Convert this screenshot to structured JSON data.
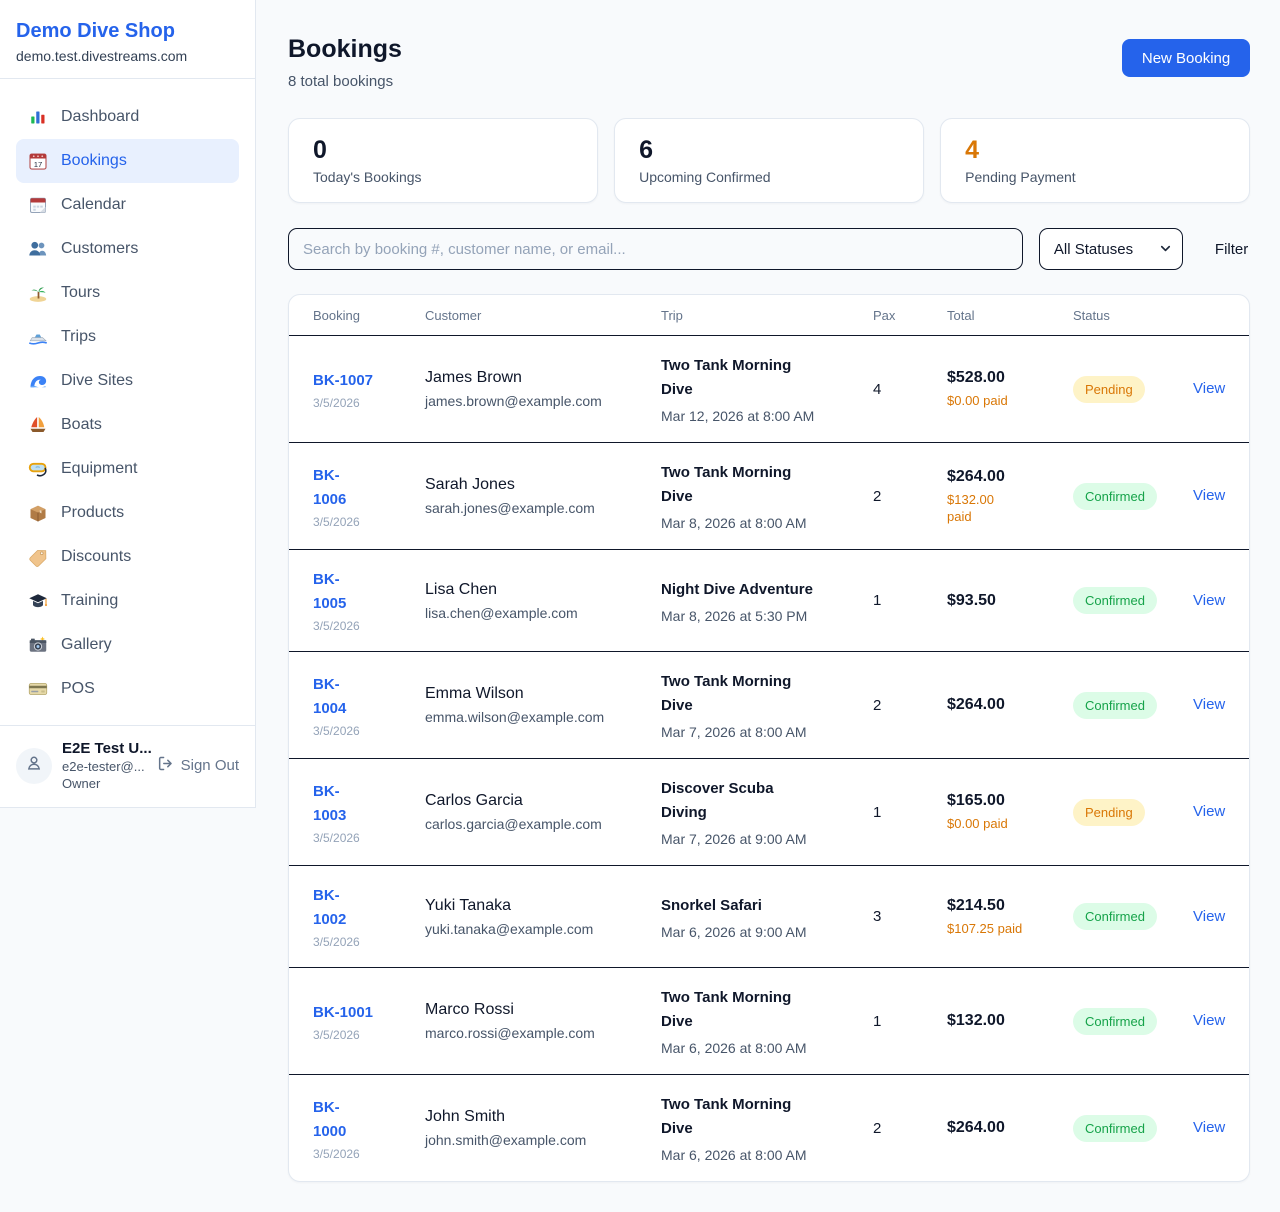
{
  "brand": {
    "name": "Demo Dive Shop",
    "domain": "demo.test.divestreams.com"
  },
  "sidebar": {
    "items": [
      {
        "icon": "dashboard-icon",
        "label": "Dashboard",
        "active": false
      },
      {
        "icon": "bookings-icon",
        "label": "Bookings",
        "active": true
      },
      {
        "icon": "calendar-icon",
        "label": "Calendar",
        "active": false
      },
      {
        "icon": "customers-icon",
        "label": "Customers",
        "active": false
      },
      {
        "icon": "tours-icon",
        "label": "Tours",
        "active": false
      },
      {
        "icon": "trips-icon",
        "label": "Trips",
        "active": false
      },
      {
        "icon": "dive-sites-icon",
        "label": "Dive Sites",
        "active": false
      },
      {
        "icon": "boats-icon",
        "label": "Boats",
        "active": false
      },
      {
        "icon": "equipment-icon",
        "label": "Equipment",
        "active": false
      },
      {
        "icon": "products-icon",
        "label": "Products",
        "active": false
      },
      {
        "icon": "discounts-icon",
        "label": "Discounts",
        "active": false
      },
      {
        "icon": "training-icon",
        "label": "Training",
        "active": false
      },
      {
        "icon": "gallery-icon",
        "label": "Gallery",
        "active": false
      },
      {
        "icon": "pos-icon",
        "label": "POS",
        "active": false
      }
    ],
    "user": {
      "name": "E2E Test U...",
      "email": "e2e-tester@...",
      "role": "Owner",
      "sign_out_label": "Sign Out"
    }
  },
  "header": {
    "title": "Bookings",
    "subtitle": "8 total bookings",
    "new_booking_label": "New Booking"
  },
  "stats": [
    {
      "value": "0",
      "label": "Today's Bookings",
      "accent": false
    },
    {
      "value": "6",
      "label": "Upcoming Confirmed",
      "accent": false
    },
    {
      "value": "4",
      "label": "Pending Payment",
      "accent": true
    }
  ],
  "filters": {
    "search_placeholder": "Search by booking #, customer name, or email...",
    "status_selected": "All Statuses",
    "filter_label": "Filter"
  },
  "table": {
    "columns": [
      "Booking",
      "Customer",
      "Trip",
      "Pax",
      "Total",
      "Status"
    ],
    "view_label": "View",
    "rows": [
      {
        "id": "BK-1007",
        "date": "3/5/2026",
        "customer": "James Brown",
        "email": "james.brown@example.com",
        "trip": "Two Tank Morning\nDive",
        "trip_datetime": "Mar 12, 2026 at 8:00 AM",
        "pax": "4",
        "total": "$528.00",
        "paid": "$0.00 paid",
        "status": "Pending"
      },
      {
        "id": "BK-\n1006",
        "date": "3/5/2026",
        "customer": "Sarah Jones",
        "email": "sarah.jones@example.com",
        "trip": "Two Tank Morning\nDive",
        "trip_datetime": "Mar 8, 2026 at 8:00 AM",
        "pax": "2",
        "total": "$264.00",
        "paid": "$132.00\npaid",
        "status": "Confirmed"
      },
      {
        "id": "BK-\n1005",
        "date": "3/5/2026",
        "customer": "Lisa Chen",
        "email": "lisa.chen@example.com",
        "trip": "Night Dive Adventure",
        "trip_datetime": "Mar 8, 2026 at 5:30 PM",
        "pax": "1",
        "total": "$93.50",
        "paid": "",
        "status": "Confirmed"
      },
      {
        "id": "BK-\n1004",
        "date": "3/5/2026",
        "customer": "Emma Wilson",
        "email": "emma.wilson@example.com",
        "trip": "Two Tank Morning\nDive",
        "trip_datetime": "Mar 7, 2026 at 8:00 AM",
        "pax": "2",
        "total": "$264.00",
        "paid": "",
        "status": "Confirmed"
      },
      {
        "id": "BK-\n1003",
        "date": "3/5/2026",
        "customer": "Carlos Garcia",
        "email": "carlos.garcia@example.com",
        "trip": "Discover Scuba\nDiving",
        "trip_datetime": "Mar 7, 2026 at 9:00 AM",
        "pax": "1",
        "total": "$165.00",
        "paid": "$0.00 paid",
        "status": "Pending"
      },
      {
        "id": "BK-\n1002",
        "date": "3/5/2026",
        "customer": "Yuki Tanaka",
        "email": "yuki.tanaka@example.com",
        "trip": "Snorkel Safari",
        "trip_datetime": "Mar 6, 2026 at 9:00 AM",
        "pax": "3",
        "total": "$214.50",
        "paid": "$107.25 paid",
        "status": "Confirmed"
      },
      {
        "id": "BK-1001",
        "date": "3/5/2026",
        "customer": "Marco Rossi",
        "email": "marco.rossi@example.com",
        "trip": "Two Tank Morning\nDive",
        "trip_datetime": "Mar 6, 2026 at 8:00 AM",
        "pax": "1",
        "total": "$132.00",
        "paid": "",
        "status": "Confirmed"
      },
      {
        "id": "BK-\n1000",
        "date": "3/5/2026",
        "customer": "John Smith",
        "email": "john.smith@example.com",
        "trip": "Two Tank Morning\nDive",
        "trip_datetime": "Mar 6, 2026 at 8:00 AM",
        "pax": "2",
        "total": "$264.00",
        "paid": "",
        "status": "Confirmed"
      }
    ]
  },
  "colors": {
    "accent_blue": "#2563eb",
    "active_nav_bg": "#e8f0fe",
    "pending_text": "#d97706",
    "pending_bg": "#fef3c7",
    "confirmed_text": "#16a34a",
    "confirmed_bg": "#dcfce7",
    "page_bg": "#f8fafc",
    "dark_divider": "#0f172a",
    "light_border": "#e2e8f0"
  }
}
